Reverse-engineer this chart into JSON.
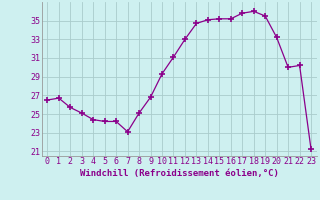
{
  "x": [
    0,
    1,
    2,
    3,
    4,
    5,
    6,
    7,
    8,
    9,
    10,
    11,
    12,
    13,
    14,
    15,
    16,
    17,
    18,
    19,
    20,
    21,
    22,
    23
  ],
  "y": [
    26.5,
    26.7,
    25.7,
    25.1,
    24.4,
    24.2,
    24.2,
    23.1,
    25.1,
    26.8,
    29.3,
    31.1,
    33.0,
    34.7,
    35.1,
    35.2,
    35.2,
    35.8,
    36.0,
    35.5,
    33.2,
    30.0,
    30.2,
    21.2
  ],
  "line_color": "#8B008B",
  "marker": "+",
  "marker_size": 4,
  "xlabel": "Windchill (Refroidissement éolien,°C)",
  "bg_color": "#cef0f0",
  "grid_color": "#aacccc",
  "label_color": "#8B008B",
  "ylim": [
    20.5,
    37.0
  ],
  "yticks": [
    21,
    23,
    25,
    27,
    29,
    31,
    33,
    35
  ],
  "xticks": [
    0,
    1,
    2,
    3,
    4,
    5,
    6,
    7,
    8,
    9,
    10,
    11,
    12,
    13,
    14,
    15,
    16,
    17,
    18,
    19,
    20,
    21,
    22,
    23
  ],
  "tick_fontsize": 6.0,
  "xlabel_fontsize": 6.5
}
